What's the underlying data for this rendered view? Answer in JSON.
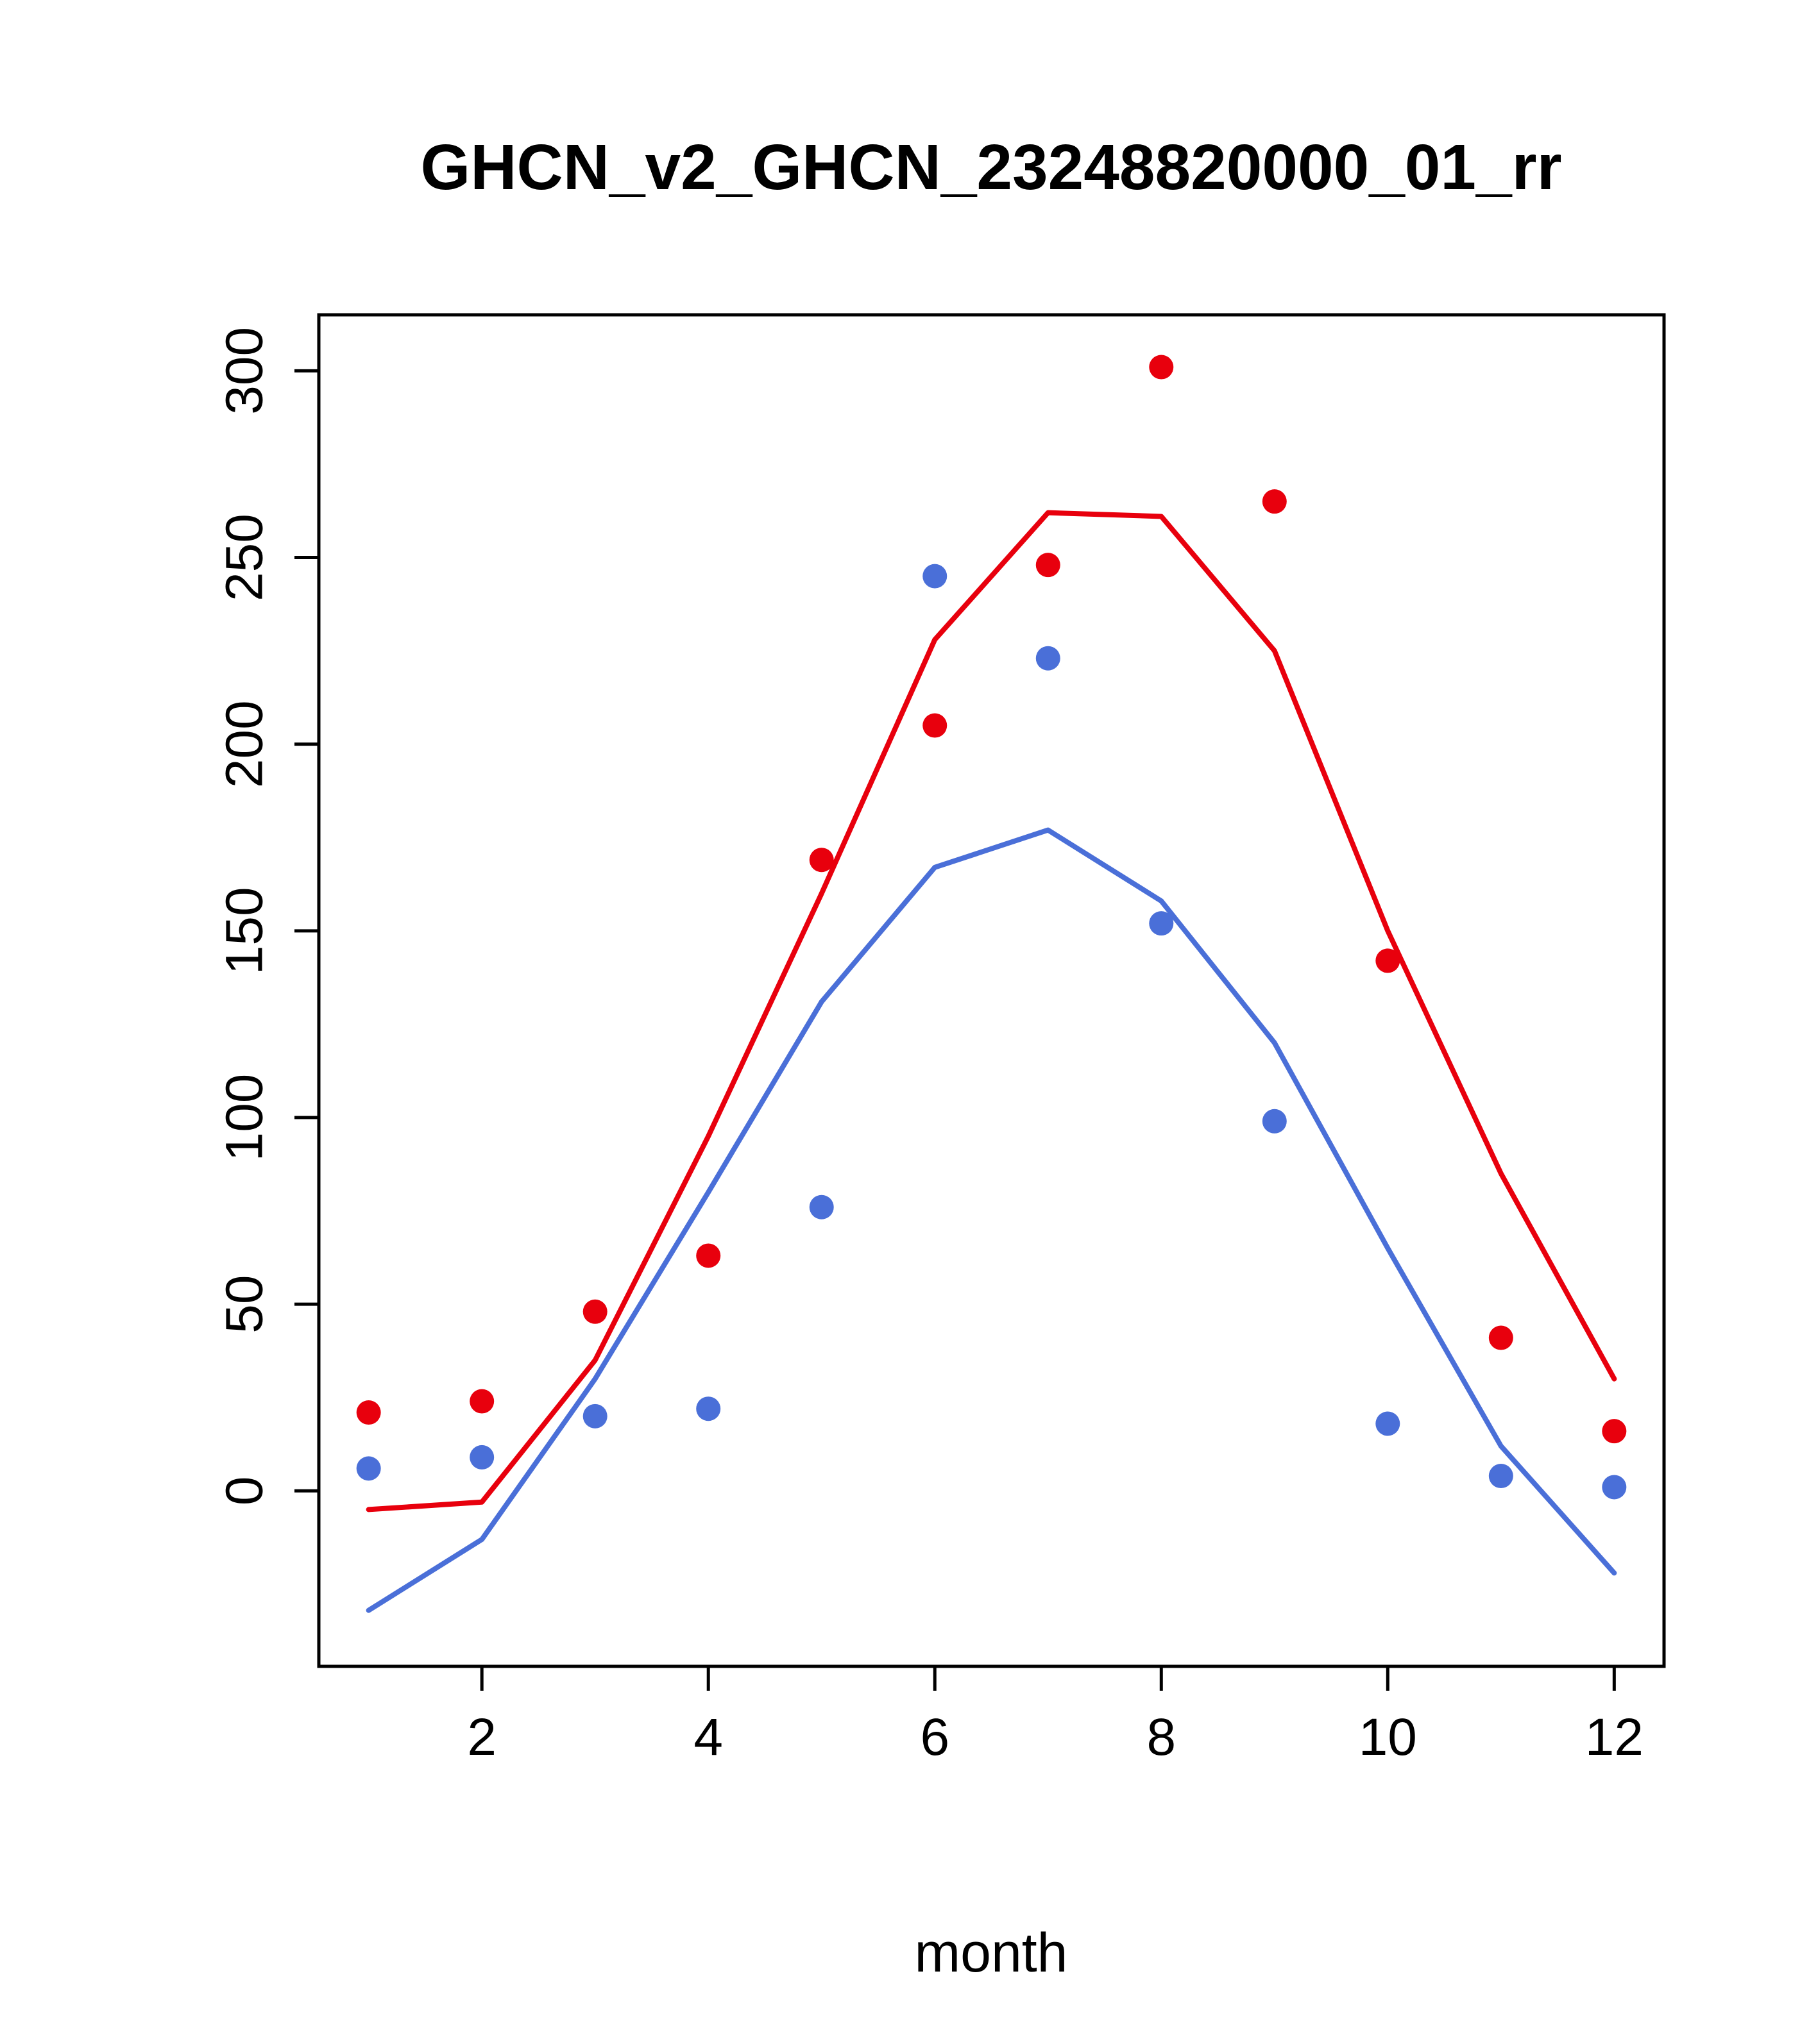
{
  "title": "GHCN_v2_GHCN_23248820000_01_rr",
  "xlabel": "month",
  "colors": {
    "red": "#e8000d",
    "blue": "#4a6fd8",
    "axis": "#000000"
  },
  "chart_data": {
    "type": "line",
    "title": "GHCN_v2_GHCN_23248820000_01_rr",
    "xlabel": "month",
    "ylabel": "",
    "x": [
      1,
      2,
      3,
      4,
      5,
      6,
      7,
      8,
      9,
      10,
      11,
      12
    ],
    "xticks": [
      2,
      4,
      6,
      8,
      10,
      12
    ],
    "yticks": [
      0,
      50,
      100,
      150,
      200,
      250,
      300
    ],
    "xlim": [
      0.56,
      12.44
    ],
    "ylim": [
      -47,
      315
    ],
    "grid": false,
    "legend": null,
    "series": [
      {
        "name": "blue-line",
        "style": "line",
        "color": "#4a6fd8",
        "values": [
          -32,
          -13,
          30,
          80,
          131,
          167,
          177,
          158,
          120,
          65,
          12,
          -22
        ]
      },
      {
        "name": "red-line",
        "style": "line",
        "color": "#e8000d",
        "values": [
          -5,
          -3,
          35,
          95,
          160,
          228,
          262,
          261,
          225,
          150,
          85,
          30
        ]
      },
      {
        "name": "blue-points",
        "style": "points",
        "color": "#4a6fd8",
        "values": [
          6,
          9,
          20,
          22,
          76,
          245,
          223,
          152,
          99,
          18,
          4,
          1
        ]
      },
      {
        "name": "red-points",
        "style": "points",
        "color": "#e8000d",
        "values": [
          21,
          24,
          48,
          63,
          169,
          205,
          248,
          301,
          265,
          142,
          41,
          16
        ]
      }
    ]
  }
}
